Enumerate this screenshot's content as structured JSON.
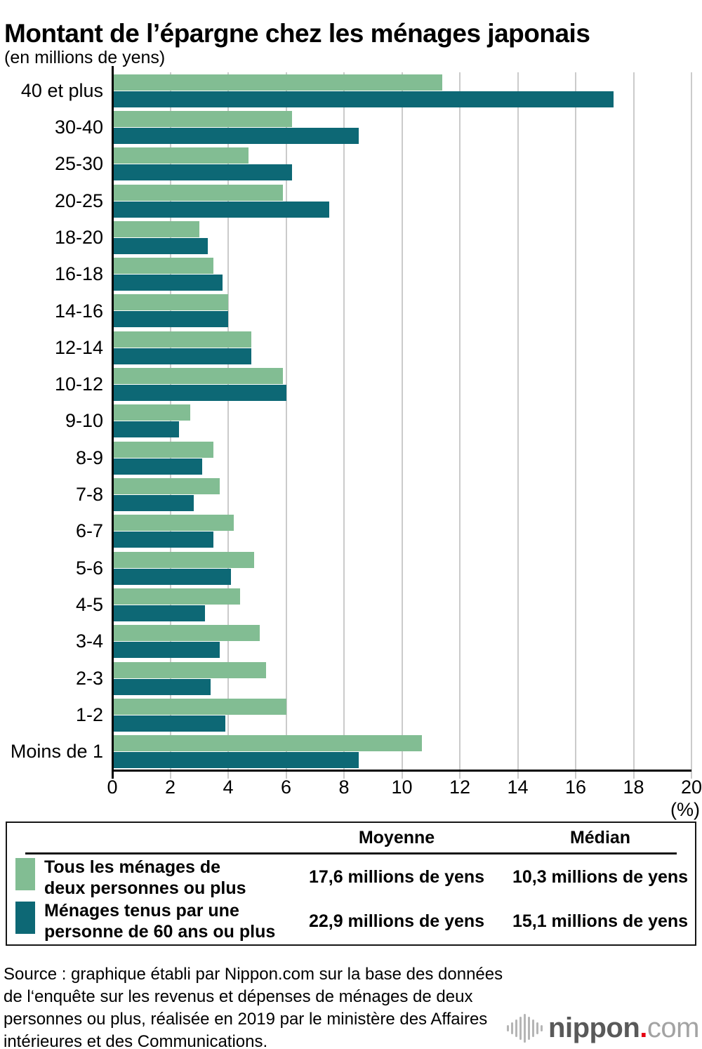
{
  "header": {
    "title": "Montant de l’épargne chez les ménages japonais",
    "subtitle": "(en millions de yens)"
  },
  "chart_data": {
    "type": "bar",
    "orientation": "horizontal",
    "title": "Montant de l’épargne chez les ménages japonais",
    "subtitle": "(en millions de yens)",
    "categories": [
      "40 et plus",
      "30-40",
      "25-30",
      "20-25",
      "18-20",
      "16-18",
      "14-16",
      "12-14",
      "10-12",
      "9-10",
      "8-9",
      "7-8",
      "6-7",
      "5-6",
      "4-5",
      "3-4",
      "2-3",
      "1-2",
      "Moins de 1"
    ],
    "series": [
      {
        "name": "Tous les ménages de deux personnes ou plus",
        "color": "#82bd93",
        "values": [
          11.4,
          6.2,
          4.7,
          5.9,
          3.0,
          3.5,
          4.0,
          4.8,
          5.9,
          2.7,
          3.5,
          3.7,
          4.2,
          4.9,
          4.4,
          5.1,
          5.3,
          6.0,
          10.7
        ]
      },
      {
        "name": "Ménages tenus par une personne de 60 ans ou plus",
        "color": "#0d6875",
        "values": [
          17.3,
          8.5,
          6.2,
          7.5,
          3.3,
          3.8,
          4.0,
          4.8,
          6.0,
          2.3,
          3.1,
          2.8,
          3.5,
          4.1,
          3.2,
          3.7,
          3.4,
          3.9,
          8.5
        ]
      }
    ],
    "xlim": [
      0,
      20
    ],
    "x_ticks": [
      0,
      2,
      4,
      6,
      8,
      10,
      12,
      14,
      16,
      18,
      20
    ],
    "x_unit": "(%)",
    "grid": "vertical",
    "legend_position": "table-below"
  },
  "legend_table": {
    "columns": [
      "Moyenne",
      "Médian"
    ],
    "rows": [
      {
        "swatch_color": "#82bd93",
        "label_lines": [
          "Tous les ménages de",
          "deux personnes ou plus"
        ],
        "moyenne": "17,6 millions de yens",
        "median": "10,3 millions de yens"
      },
      {
        "swatch_color": "#0d6875",
        "label_lines": [
          "Ménages tenus par une",
          "personne de 60 ans ou plus"
        ],
        "moyenne": "22,9 millions de yens",
        "median": "15,1 millions de yens"
      }
    ]
  },
  "source_lines": [
    "Source : graphique établi par Nippon.com sur la base des données",
    "de l‘enquête sur les revenus et dépenses de ménages de deux",
    "personnes ou plus, réalisée en 2019 par le ministère des Affaires",
    "intérieures et des Communications."
  ],
  "logo": {
    "icon": "soundwave-icon",
    "name": "nippon",
    "dot": ".",
    "tld": "com",
    "colors": {
      "bars_green": "#82bd93",
      "bars_teal": "#0d6875",
      "grid": "#cbcbcb",
      "logo_text": "#595959",
      "logo_dot": "#e60012",
      "logo_tld": "#a3a3a3"
    }
  }
}
